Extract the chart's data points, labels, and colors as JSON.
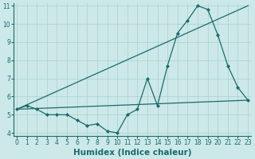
{
  "xlabel": "Humidex (Indice chaleur)",
  "background_color": "#cce8e8",
  "line_color": "#1a6b6b",
  "x_min": 0,
  "x_max": 23,
  "y_min": 4,
  "y_max": 11,
  "line1_x": [
    0,
    1,
    2,
    3,
    4,
    5,
    6,
    7,
    8,
    9,
    10,
    11,
    12,
    13,
    14,
    15,
    16,
    17,
    18,
    19,
    20,
    21,
    22,
    23
  ],
  "line1_y": [
    5.3,
    5.5,
    5.3,
    5.0,
    5.0,
    5.0,
    4.7,
    4.4,
    4.5,
    4.1,
    4.0,
    5.0,
    5.3,
    7.0,
    5.5,
    7.7,
    9.5,
    10.2,
    11.0,
    10.8,
    9.4,
    7.7,
    6.5,
    5.8
  ],
  "line2_x": [
    0,
    23
  ],
  "line2_y": [
    5.3,
    5.8
  ],
  "line3_x": [
    0,
    23
  ],
  "line3_y": [
    5.3,
    11.0
  ],
  "grid_color": "#aad0d0",
  "tick_fontsize": 5.5,
  "label_fontsize": 7.5
}
